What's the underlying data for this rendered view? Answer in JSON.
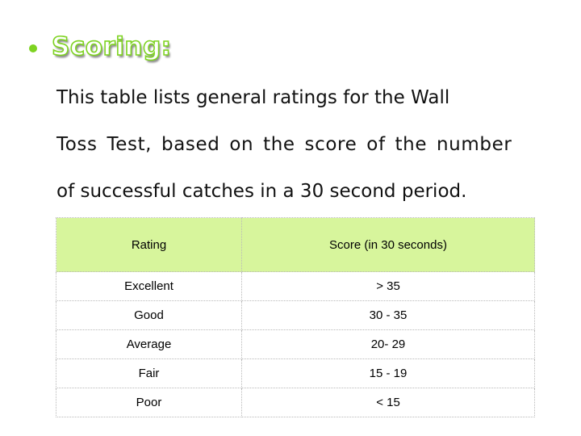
{
  "heading": {
    "title": "Scoring:",
    "accent_color": "#7ed321",
    "bullet_icon": "bullet-dot"
  },
  "intro_lines": [
    "This table lists general ratings for the Wall",
    "Toss Test, based on the score of the number",
    "of successful catches in a 30 second period."
  ],
  "table": {
    "header_background": "#d7f59c",
    "headers": [
      "Rating",
      "Score (in 30 seconds)"
    ],
    "rows": [
      [
        "Excellent",
        "> 35"
      ],
      [
        "Good",
        "30 - 35"
      ],
      [
        "Average",
        "20- 29"
      ],
      [
        "Fair",
        "15 - 19"
      ],
      [
        "Poor",
        "< 15"
      ]
    ]
  }
}
